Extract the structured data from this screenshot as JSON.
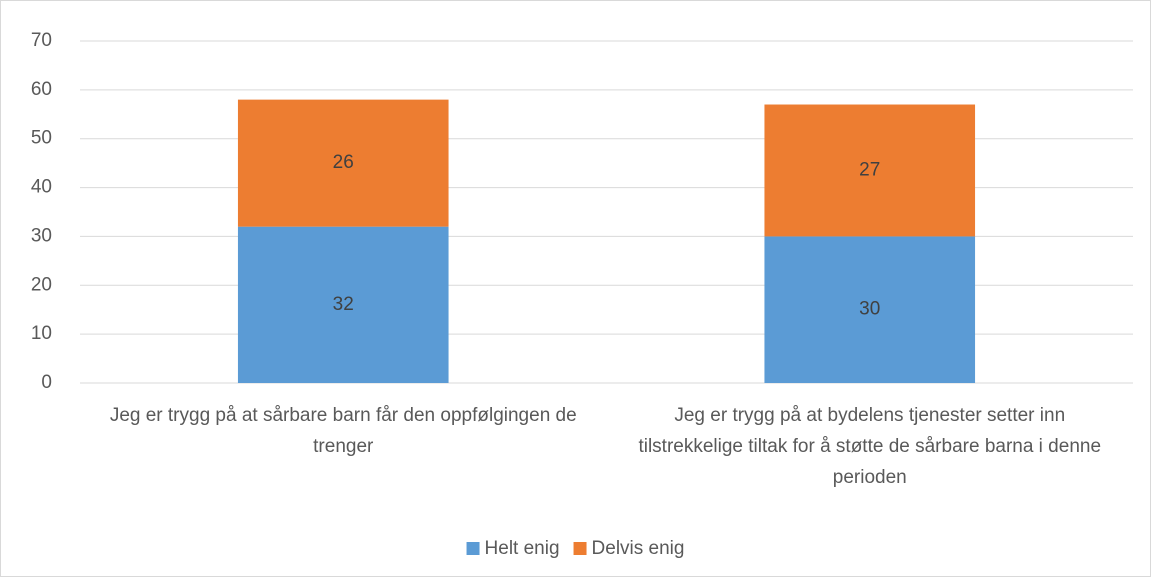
{
  "chart_data": {
    "type": "stacked_bar",
    "categories": [
      "Jeg er trygg på at sårbare barn får den oppfølgingen de trenger",
      "Jeg er trygg på at bydelens tjenester setter inn tilstrekkelige tiltak for å støtte de sårbare barna i denne perioden"
    ],
    "series": [
      {
        "name": "Helt enig",
        "color": "#5b9bd5",
        "values": [
          32,
          30
        ]
      },
      {
        "name": "Delvis enig",
        "color": "#ed7d31",
        "values": [
          26,
          27
        ]
      }
    ],
    "ylim": [
      0,
      70
    ],
    "yticks": [
      0,
      10,
      20,
      30,
      40,
      50,
      60,
      70
    ],
    "grid": true,
    "legend": "bottom"
  }
}
